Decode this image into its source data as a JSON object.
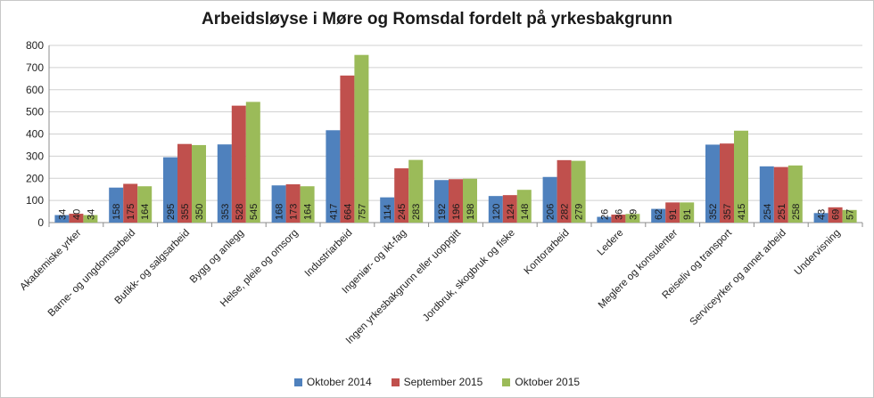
{
  "chart_data": {
    "type": "bar",
    "title": "Arbeidsløyse i Møre og Romsdal fordelt på yrkesbakgrunn",
    "xlabel": "",
    "ylabel": "",
    "ylim": [
      0,
      800
    ],
    "yticks": [
      "0",
      "100",
      "200",
      "300",
      "400",
      "500",
      "600",
      "700",
      "800"
    ],
    "grid": true,
    "legend_position": "bottom",
    "categories": [
      "Akademiske yrker",
      "Barne- og ungdomsarbeid",
      "Butikk- og salgsarbeid",
      "Bygg og anlegg",
      "Helse, pleie og omsorg",
      "Industriarbeid",
      "Ingeniør- og ikt-fag",
      "Ingen yrkesbakgrunn eller uoppgitt",
      "Jordbruk, skogbruk og fiske",
      "Kontorarbeid",
      "Ledere",
      "Meglere og konsulenter",
      "Reiseliv og transport",
      "Serviceyrker og annet arbeid",
      "Undervisning"
    ],
    "series": [
      {
        "name": "Oktober 2014",
        "color": "#4f81bd",
        "values": [
          34,
          158,
          295,
          353,
          168,
          417,
          114,
          192,
          120,
          206,
          26,
          62,
          352,
          254,
          43
        ]
      },
      {
        "name": "September 2015",
        "color": "#c0504d",
        "values": [
          40,
          175,
          355,
          528,
          173,
          664,
          245,
          196,
          124,
          282,
          36,
          91,
          357,
          251,
          69
        ]
      },
      {
        "name": "Oktober 2015",
        "color": "#9bbb59",
        "values": [
          34,
          164,
          350,
          545,
          164,
          757,
          283,
          198,
          148,
          279,
          39,
          91,
          415,
          258,
          57
        ]
      }
    ]
  }
}
